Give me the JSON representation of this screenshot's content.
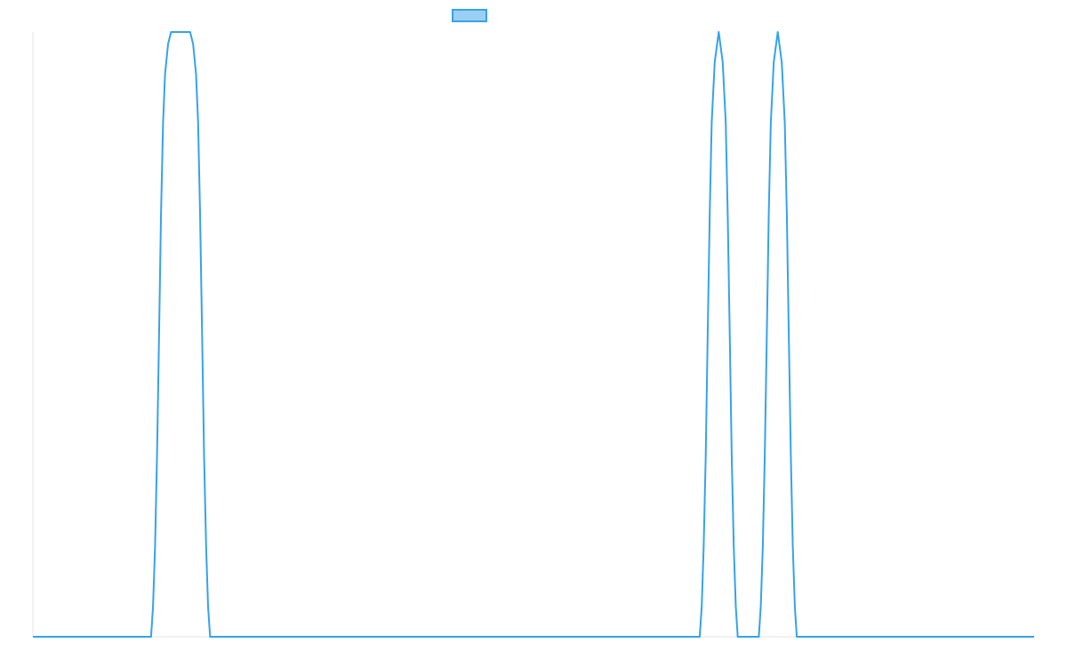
{
  "chart_data": {
    "type": "line",
    "title": "",
    "xlabel": "",
    "ylabel": "",
    "grid": false,
    "legend": "top-center",
    "xlim": [
      0,
      100
    ],
    "ylim": [
      0,
      1
    ],
    "series": [
      {
        "name": "",
        "color": "#36a2eb",
        "points": [
          [
            0,
            0
          ],
          [
            11.8,
            0
          ],
          [
            12.0,
            0.05
          ],
          [
            12.2,
            0.15
          ],
          [
            12.4,
            0.3
          ],
          [
            12.6,
            0.5
          ],
          [
            12.8,
            0.7
          ],
          [
            13.0,
            0.85
          ],
          [
            13.2,
            0.93
          ],
          [
            13.5,
            0.98
          ],
          [
            13.8,
            1.0
          ],
          [
            15.7,
            1.0
          ],
          [
            16.0,
            0.98
          ],
          [
            16.3,
            0.93
          ],
          [
            16.5,
            0.85
          ],
          [
            16.7,
            0.7
          ],
          [
            16.9,
            0.5
          ],
          [
            17.1,
            0.3
          ],
          [
            17.3,
            0.15
          ],
          [
            17.5,
            0.05
          ],
          [
            17.7,
            0
          ],
          [
            66.6,
            0
          ],
          [
            66.8,
            0.05
          ],
          [
            67.0,
            0.15
          ],
          [
            67.2,
            0.3
          ],
          [
            67.4,
            0.5
          ],
          [
            67.6,
            0.7
          ],
          [
            67.8,
            0.85
          ],
          [
            68.1,
            0.95
          ],
          [
            68.5,
            1.0
          ],
          [
            68.9,
            0.95
          ],
          [
            69.2,
            0.85
          ],
          [
            69.4,
            0.7
          ],
          [
            69.6,
            0.5
          ],
          [
            69.8,
            0.3
          ],
          [
            70.0,
            0.15
          ],
          [
            70.2,
            0.05
          ],
          [
            70.4,
            0
          ],
          [
            72.5,
            0
          ],
          [
            72.7,
            0.05
          ],
          [
            72.9,
            0.15
          ],
          [
            73.1,
            0.3
          ],
          [
            73.3,
            0.5
          ],
          [
            73.5,
            0.7
          ],
          [
            73.7,
            0.85
          ],
          [
            74.0,
            0.95
          ],
          [
            74.4,
            1.0
          ],
          [
            74.8,
            0.95
          ],
          [
            75.1,
            0.85
          ],
          [
            75.3,
            0.7
          ],
          [
            75.5,
            0.5
          ],
          [
            75.7,
            0.3
          ],
          [
            75.9,
            0.15
          ],
          [
            76.1,
            0.05
          ],
          [
            76.3,
            0
          ],
          [
            100,
            0
          ]
        ]
      }
    ]
  }
}
